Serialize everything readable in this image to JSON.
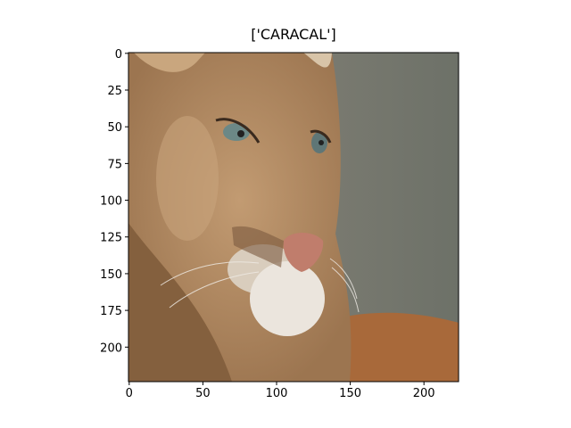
{
  "chart_data": {
    "type": "image",
    "title": "['CARACAL']",
    "xlim": [
      -0.5,
      223.5
    ],
    "ylim": [
      223.5,
      -0.5
    ],
    "xticks": [
      0,
      50,
      100,
      150,
      200
    ],
    "yticks": [
      0,
      25,
      50,
      75,
      100,
      125,
      150,
      175,
      200
    ]
  }
}
